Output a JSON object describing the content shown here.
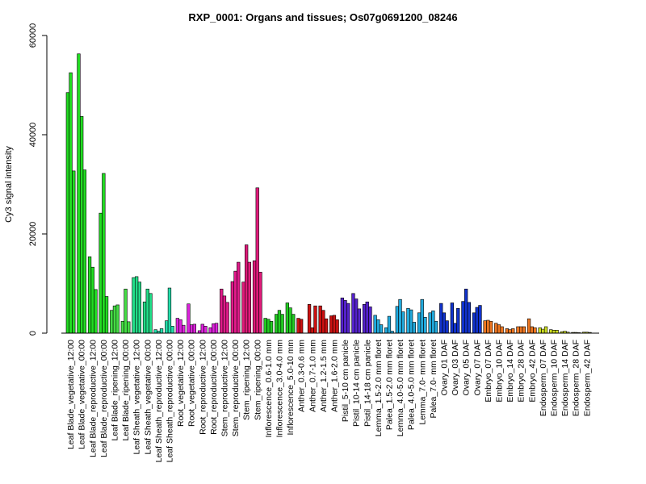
{
  "chart_data": {
    "type": "bar",
    "title": "RXP_0001: Organs and tissues; Os07g0691200_08246",
    "xlabel": "",
    "ylabel": "Cy3 signal intensity",
    "ylim": [
      0,
      60000
    ],
    "yticks": [
      0,
      20000,
      40000,
      60000
    ],
    "ytick_labels": [
      "0",
      "20000",
      "40000",
      "60000"
    ],
    "grid": false,
    "legend": "none",
    "groups": [
      {
        "label": "Leaf Blade_vegetative_12:00",
        "color": "#22dd22",
        "values": [
          48500,
          52500,
          32700
        ]
      },
      {
        "label": "Leaf Blade_vegetative_00:00",
        "color": "#22dd22",
        "values": [
          56300,
          43700,
          32900
        ]
      },
      {
        "label": "Leaf Blade_reproductive_12:00",
        "color": "#22dd22",
        "values": [
          15400,
          13300,
          8800
        ]
      },
      {
        "label": "Leaf Blade_reproductive_00:00",
        "color": "#22dd22",
        "values": [
          24200,
          32200,
          7400
        ]
      },
      {
        "label": "Leaf Blade_ripening_12:00",
        "color": "#44dd44",
        "values": [
          4600,
          5500,
          5700
        ]
      },
      {
        "label": "Leaf Blade_ripening_00:00",
        "color": "#44dd44",
        "values": [
          2400,
          8900,
          2300
        ]
      },
      {
        "label": "Leaf Sheath_vegetative_12:00",
        "color": "#22dd88",
        "values": [
          11200,
          11400,
          10300
        ]
      },
      {
        "label": "Leaf Sheath_vegetative_00:00",
        "color": "#22dd88",
        "values": [
          6300,
          8900,
          8000
        ]
      },
      {
        "label": "Leaf Sheath_reproductive_12:00",
        "color": "#22ddaa",
        "values": [
          700,
          400,
          900
        ]
      },
      {
        "label": "Leaf Sheath_reproductive_00:00",
        "color": "#22ddaa",
        "values": [
          2500,
          9100,
          1400
        ]
      },
      {
        "label": "Root_vegetative_12:00",
        "color": "#dd22dd",
        "values": [
          3000,
          2700,
          1600
        ]
      },
      {
        "label": "Root_vegetative_00:00",
        "color": "#dd22dd",
        "values": [
          5900,
          1700,
          1800
        ]
      },
      {
        "label": "Root_reproductive_12:00",
        "color": "#dd22dd",
        "values": [
          500,
          1800,
          1400
        ]
      },
      {
        "label": "Root_reproductive_00:00",
        "color": "#dd22dd",
        "values": [
          1100,
          1900,
          2000
        ]
      },
      {
        "label": "Stem_reproductive_12:00",
        "color": "#e01a8a",
        "values": [
          8900,
          7500,
          6200
        ]
      },
      {
        "label": "Stem_reproductive_00:00",
        "color": "#e01a8a",
        "values": [
          10400,
          12500,
          14300
        ]
      },
      {
        "label": "Stem_ripening_12:00",
        "color": "#e01a7a",
        "values": [
          10300,
          17800,
          14300
        ]
      },
      {
        "label": "Stem_ripening_00:00",
        "color": "#e01a7a",
        "values": [
          14600,
          29300,
          12300
        ]
      },
      {
        "label": "Inflorescence_0.6-1.0 mm",
        "color": "#22cc22",
        "values": [
          3000,
          2800,
          2400
        ]
      },
      {
        "label": "Inflorescence_3.0-4.0 mm",
        "color": "#22cc22",
        "values": [
          3800,
          4600,
          3800
        ]
      },
      {
        "label": "Inflorescence_5.0-10 mm",
        "color": "#22cc22",
        "values": [
          6100,
          5100,
          3800
        ]
      },
      {
        "label": "Anther_0.3-0.6 mm",
        "color": "#cc1111",
        "values": [
          3000,
          2800,
          0
        ]
      },
      {
        "label": "Anther_0.7-1.0 mm",
        "color": "#cc1111",
        "values": [
          5800,
          1100,
          5500
        ]
      },
      {
        "label": "Anther_1.2-1.5 mm",
        "color": "#cc1111",
        "values": [
          5500,
          4600,
          2900
        ]
      },
      {
        "label": "Anther_1.6-2.0 mm",
        "color": "#cc1111",
        "values": [
          3500,
          3600,
          2700
        ]
      },
      {
        "label": "Pistil_5-10 cm panicle",
        "color": "#5522cc",
        "values": [
          7100,
          6600,
          6000
        ]
      },
      {
        "label": "Pistil_10-14 cm panicle",
        "color": "#5522cc",
        "values": [
          8000,
          6900,
          4900
        ]
      },
      {
        "label": "Pistil_14-18 cm panicle",
        "color": "#5522cc",
        "values": [
          5800,
          6300,
          5300
        ]
      },
      {
        "label": "Lemma_1.5-2.0 mm floret",
        "color": "#22aadd",
        "values": [
          3600,
          2700,
          1700
        ]
      },
      {
        "label": "Palea_1.5-2.0 mm floret",
        "color": "#22aadd",
        "values": [
          1100,
          3400,
          400
        ]
      },
      {
        "label": "Lemma_4.0-5.0 mm floret",
        "color": "#22aadd",
        "values": [
          5400,
          6800,
          4300
        ]
      },
      {
        "label": "Palea_4.0-5.0 mm floret",
        "color": "#22aadd",
        "values": [
          5000,
          4700,
          2200
        ]
      },
      {
        "label": "Lemma_7.0- mm floret",
        "color": "#22aadd",
        "values": [
          4100,
          6800,
          3200
        ]
      },
      {
        "label": "Palea_7.0- mm floret",
        "color": "#22aadd",
        "values": [
          4100,
          4500,
          2400
        ]
      },
      {
        "label": "Ovary_01 DAF",
        "color": "#1133cc",
        "values": [
          6000,
          4100,
          2500
        ]
      },
      {
        "label": "Ovary_03 DAF",
        "color": "#1133cc",
        "values": [
          6100,
          2000,
          5000
        ]
      },
      {
        "label": "Ovary_05 DAF",
        "color": "#1133cc",
        "values": [
          6400,
          8900,
          6200
        ]
      },
      {
        "label": "Ovary_07 DAF",
        "color": "#1133cc",
        "values": [
          4100,
          5200,
          5600
        ]
      },
      {
        "label": "Embryo_07 DAF",
        "color": "#ee7722",
        "values": [
          2500,
          2600,
          2400
        ]
      },
      {
        "label": "Embryo_10 DAF",
        "color": "#ee7722",
        "values": [
          2000,
          1700,
          1300
        ]
      },
      {
        "label": "Embryo_14 DAF",
        "color": "#ee7722",
        "values": [
          900,
          700,
          900
        ]
      },
      {
        "label": "Embryo_28 DAF",
        "color": "#ee7722",
        "values": [
          1300,
          1300,
          1300
        ]
      },
      {
        "label": "Embryo_42 DAF",
        "color": "#ee7722",
        "values": [
          2900,
          1300,
          1100
        ]
      },
      {
        "label": "Endosperm_07 DAF",
        "color": "#ccdd22",
        "values": [
          1100,
          800,
          1300
        ]
      },
      {
        "label": "Endosperm_10 DAF",
        "color": "#ccdd22",
        "values": [
          700,
          600,
          600
        ]
      },
      {
        "label": "Endosperm_14 DAF",
        "color": "#ccdd22",
        "values": [
          300,
          400,
          200
        ]
      },
      {
        "label": "Endosperm_28 DAF",
        "color": "#ccdd22",
        "values": [
          150,
          150,
          100
        ]
      },
      {
        "label": "Endosperm_42 DAF",
        "color": "#ccdd22",
        "values": [
          200,
          200,
          150
        ]
      }
    ]
  }
}
